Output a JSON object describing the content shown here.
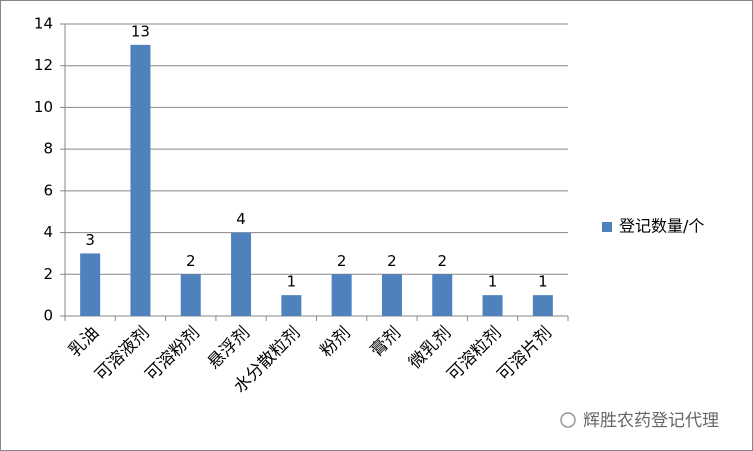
{
  "chart_data": {
    "type": "bar",
    "categories": [
      "乳油",
      "可溶液剂",
      "可溶粉剂",
      "悬浮剂",
      "水分散粒剂",
      "粉剂",
      "膏剂",
      "微乳剂",
      "可溶粒剂",
      "可溶片剂"
    ],
    "series": [
      {
        "name": "登记数量/个",
        "color": "#4f81bd",
        "values": [
          3,
          13,
          2,
          4,
          1,
          2,
          2,
          2,
          1,
          1
        ]
      }
    ],
    "ylim": [
      0,
      14
    ],
    "yticks": [
      0,
      2,
      4,
      6,
      8,
      10,
      12,
      14
    ],
    "grid": true,
    "legend": "right",
    "watermark": "辉胜农药登记代理"
  }
}
